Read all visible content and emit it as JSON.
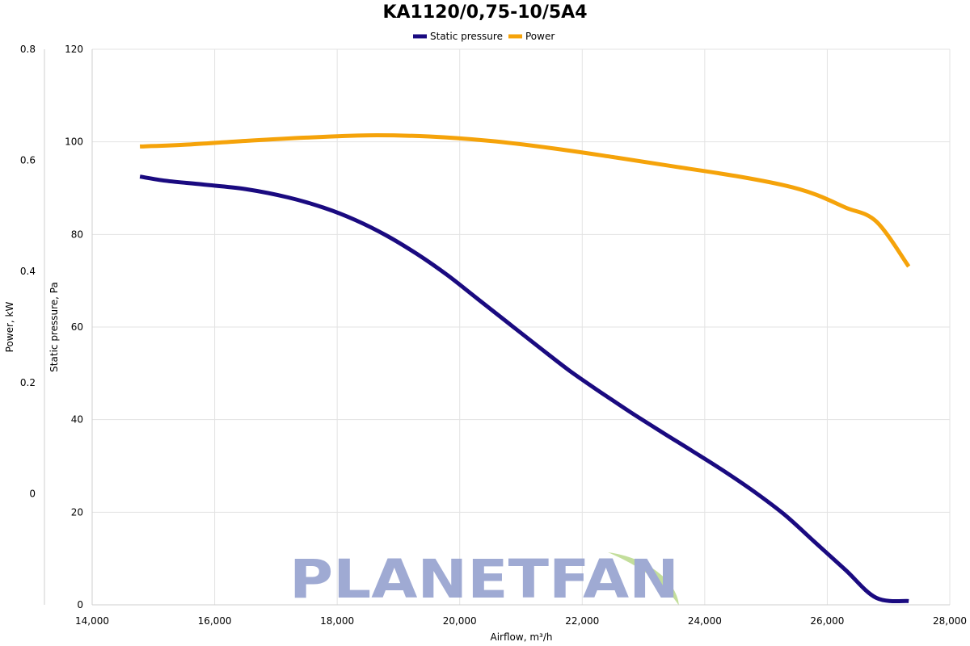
{
  "chart_data": {
    "type": "line",
    "title": "KA1120/0,75-10/5A4",
    "xlabel": "Airflow, m³/h",
    "ylabel_left": "Static pressure, Pa",
    "ylabel_secondary": "Power, kW",
    "xlim": [
      14000,
      28000
    ],
    "ylim_left": [
      0,
      120
    ],
    "ylim_secondary": [
      -0.2,
      0.8
    ],
    "x_ticks": [
      "14,000",
      "16,000",
      "18,000",
      "20,000",
      "22,000",
      "24,000",
      "26,000",
      "28,000"
    ],
    "x_tick_values": [
      14000,
      16000,
      18000,
      20000,
      22000,
      24000,
      26000,
      28000
    ],
    "y_left_ticks": [
      "0",
      "20",
      "40",
      "60",
      "80",
      "100",
      "120"
    ],
    "y_left_tick_values": [
      0,
      20,
      40,
      60,
      80,
      100,
      120
    ],
    "y_secondary_ticks": [
      "0",
      "0.2",
      "0.4",
      "0.6",
      "0.8"
    ],
    "y_secondary_tick_values": [
      0,
      0.2,
      0.4,
      0.6,
      0.8
    ],
    "grid": true,
    "legend_position": "top-center",
    "watermark": "PLANETFAN",
    "series": [
      {
        "name": "Static pressure",
        "axis": "left",
        "color": "#1a0a80",
        "x": [
          14780,
          15200,
          15800,
          16500,
          17200,
          17800,
          18300,
          18800,
          19300,
          19800,
          20300,
          20800,
          21300,
          21800,
          22300,
          22800,
          23300,
          23800,
          24300,
          24800,
          25300,
          25800,
          26300,
          26800,
          27330
        ],
        "y": [
          92.5,
          91.6,
          90.8,
          89.8,
          88.0,
          85.7,
          83.1,
          79.8,
          75.8,
          71.2,
          66.0,
          60.8,
          55.6,
          50.5,
          45.9,
          41.5,
          37.3,
          33.2,
          29.0,
          24.5,
          19.5,
          13.5,
          7.5,
          1.5,
          0.8
        ]
      },
      {
        "name": "Power",
        "axis": "secondary",
        "color": "#f5a30a",
        "x": [
          14780,
          15500,
          16500,
          17500,
          18500,
          19500,
          20500,
          21500,
          22500,
          23500,
          24500,
          25300,
          25800,
          26300,
          26800,
          27330
        ],
        "y": [
          0.625,
          0.628,
          0.635,
          0.641,
          0.645,
          0.643,
          0.635,
          0.622,
          0.606,
          0.589,
          0.572,
          0.555,
          0.539,
          0.515,
          0.49,
          0.409
        ]
      }
    ]
  }
}
